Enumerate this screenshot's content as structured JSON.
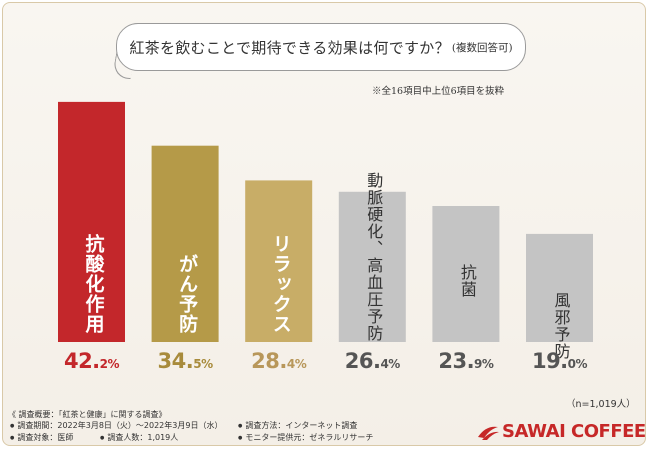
{
  "question": {
    "main": "紅茶を飲むことで期待できる効果は何ですか？",
    "suffix": "(複数回答可)"
  },
  "note": "※全16項目中上位6項目を抜粋",
  "chart_data": {
    "type": "bar",
    "title": "紅茶を飲むことで期待できる効果は何ですか？(複数回答可)",
    "categories": [
      "抗酸化作用",
      "がん予防",
      "リラックス",
      "動脈硬化、高血圧予防",
      "抗菌",
      "風邪予防"
    ],
    "values": [
      42.2,
      34.5,
      28.4,
      26.4,
      23.9,
      19.0
    ],
    "unit": "%",
    "ylim": [
      0,
      50
    ],
    "colors": [
      "#c3272b",
      "#b59a48",
      "#c8ad67",
      "#c4c4c4",
      "#c4c4c4",
      "#c4c4c4"
    ],
    "value_colors": [
      "#c3272b",
      "#a88b3c",
      "#b8975a",
      "#555555",
      "#555555",
      "#555555"
    ],
    "label_dark": [
      false,
      false,
      false,
      true,
      true,
      true
    ]
  },
  "sample_size": "（n=1,019人）",
  "footer": {
    "title": "《 調査概要：「紅茶と健康」に関する調査》",
    "period": "調査期間：2022年3月8日（火）～2022年3月9日（水）",
    "method": "調査方法：インターネット調査",
    "target": "調査対象：医師",
    "count": "調査人数：1,019人",
    "provider": "モニター提供元：ゼネラルリサーチ"
  },
  "logo": {
    "text": "SAWAI COFFEE",
    "color": "#c62828"
  }
}
